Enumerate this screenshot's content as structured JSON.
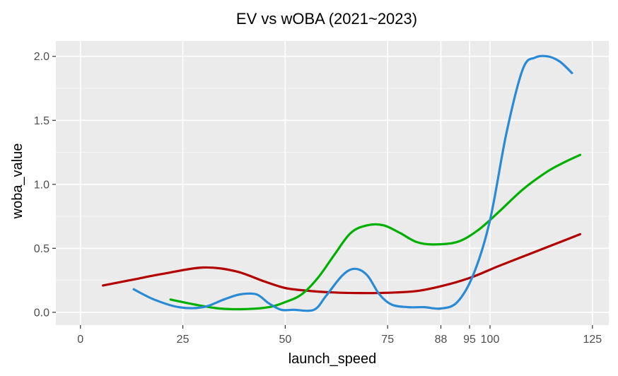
{
  "chart_data": {
    "type": "line",
    "title": "EV vs wOBA (2021~2023)",
    "xlabel": "launch_speed",
    "ylabel": "woba_value",
    "xlim": [
      -6,
      129
    ],
    "ylim": [
      -0.1,
      2.12
    ],
    "x_ticks": [
      0,
      25,
      50,
      75,
      88,
      95,
      100,
      125
    ],
    "x_tick_labels": [
      "0",
      "25",
      "50",
      "75",
      "88",
      "95",
      "100",
      "125"
    ],
    "y_ticks": [
      0.0,
      0.5,
      1.0,
      1.5,
      2.0
    ],
    "y_tick_labels": [
      "0.0",
      "0.5",
      "1.0",
      "1.5",
      "2.0"
    ],
    "grid": true,
    "legend": "none",
    "background": "#ebebeb",
    "series": [
      {
        "color": "#b20000",
        "x": [
          5.5,
          12,
          20,
          30,
          38,
          45,
          50,
          55,
          62,
          70,
          77,
          83,
          90,
          96,
          102,
          110,
          118,
          122
        ],
        "y": [
          0.21,
          0.25,
          0.3,
          0.35,
          0.32,
          0.24,
          0.19,
          0.17,
          0.155,
          0.15,
          0.155,
          0.17,
          0.22,
          0.28,
          0.36,
          0.46,
          0.56,
          0.61
        ]
      },
      {
        "color": "#00b000",
        "x": [
          22,
          28,
          34,
          40,
          46,
          50,
          54,
          58,
          62,
          66,
          70,
          74,
          78,
          82,
          86,
          92,
          97,
          102,
          108,
          114,
          118,
          122
        ],
        "y": [
          0.1,
          0.06,
          0.03,
          0.025,
          0.04,
          0.08,
          0.14,
          0.27,
          0.45,
          0.62,
          0.68,
          0.68,
          0.62,
          0.55,
          0.53,
          0.55,
          0.64,
          0.78,
          0.96,
          1.1,
          1.17,
          1.23
        ]
      },
      {
        "color": "#2b8ad4",
        "x": [
          13,
          18,
          24,
          30,
          35,
          39,
          43,
          46,
          49,
          52,
          57,
          60,
          64,
          67,
          70,
          73,
          76,
          80,
          84,
          88,
          92,
          96,
          100,
          104,
          108,
          111,
          114,
          117,
          120
        ],
        "y": [
          0.18,
          0.1,
          0.04,
          0.04,
          0.1,
          0.14,
          0.14,
          0.07,
          0.02,
          0.02,
          0.02,
          0.13,
          0.29,
          0.34,
          0.29,
          0.14,
          0.06,
          0.04,
          0.04,
          0.03,
          0.08,
          0.3,
          0.72,
          1.4,
          1.9,
          1.99,
          2.0,
          1.96,
          1.87
        ]
      }
    ]
  }
}
